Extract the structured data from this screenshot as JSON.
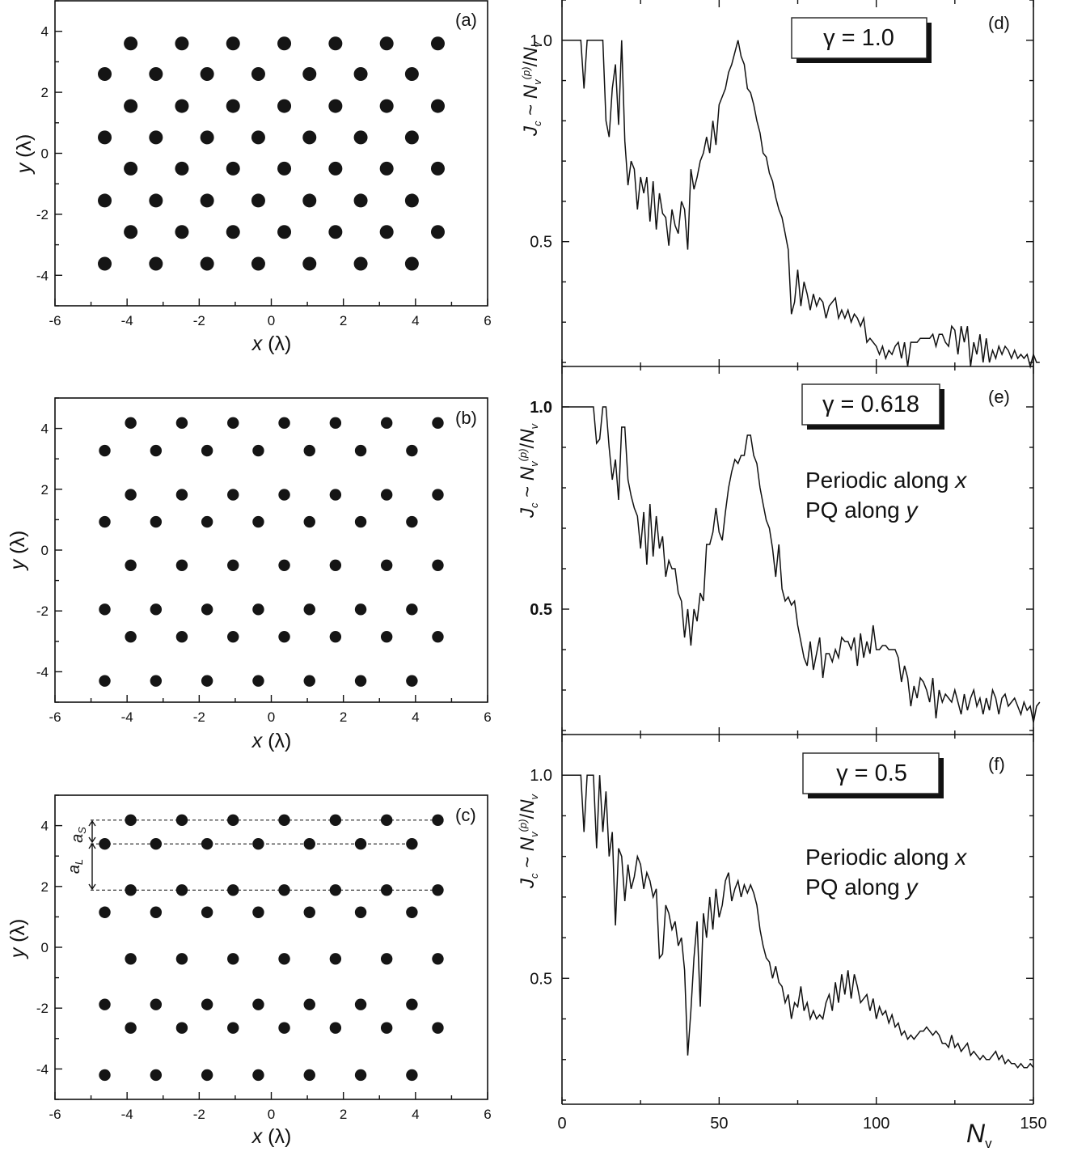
{
  "chart_data": [
    {
      "panel": "(a)",
      "type": "scatter",
      "xlabel_main": "x",
      "xlabel_unit": " (λ)",
      "ylabel_main": "y",
      "ylabel_unit": " (λ)",
      "xlim": [
        -6,
        6
      ],
      "ylim": [
        -5,
        5
      ],
      "xticks": [
        -6,
        -4,
        -2,
        0,
        2,
        4,
        6
      ],
      "yticks": [
        -4,
        -2,
        0,
        2,
        4
      ],
      "row_y": [
        3.6,
        2.6,
        1.55,
        0.52,
        -0.5,
        -1.55,
        -2.58,
        -3.62
      ],
      "row_start_x": [
        -3.9,
        -4.62,
        -3.9,
        -4.62,
        -3.9,
        -4.62,
        -3.9,
        -4.62
      ],
      "row_count": [
        7,
        7,
        7,
        7,
        7,
        7,
        7,
        7
      ],
      "dx": 1.42,
      "dot_size": "large"
    },
    {
      "panel": "(b)",
      "type": "scatter",
      "xlabel_main": "x",
      "xlabel_unit": " (λ)",
      "ylabel_main": "y",
      "ylabel_unit": " (λ)",
      "xlim": [
        -6,
        6
      ],
      "ylim": [
        -5,
        5
      ],
      "xticks": [
        -6,
        -4,
        -2,
        0,
        2,
        4,
        6
      ],
      "yticks": [
        -4,
        -2,
        0,
        2,
        4
      ],
      "row_y": [
        4.18,
        3.27,
        1.82,
        0.93,
        -0.5,
        -1.95,
        -2.85,
        -4.3
      ],
      "row_start_x": [
        -3.9,
        -4.62,
        -3.9,
        -4.62,
        -3.9,
        -4.62,
        -3.9,
        -4.62
      ],
      "row_count": [
        7,
        7,
        7,
        7,
        7,
        7,
        7,
        7
      ],
      "dx": 1.42,
      "dot_size": "medium"
    },
    {
      "panel": "(c)",
      "type": "scatter",
      "xlabel_main": "x",
      "xlabel_unit": " (λ)",
      "ylabel_main": "y",
      "ylabel_unit": " (λ)",
      "xlim": [
        -6,
        6
      ],
      "ylim": [
        -5,
        5
      ],
      "xticks": [
        -6,
        -4,
        -2,
        0,
        2,
        4,
        6
      ],
      "yticks": [
        -4,
        -2,
        0,
        2,
        4
      ],
      "row_y": [
        4.18,
        3.4,
        1.88,
        1.15,
        -0.38,
        -1.88,
        -2.65,
        -4.2
      ],
      "row_start_x": [
        -3.9,
        -4.62,
        -3.9,
        -4.62,
        -3.9,
        -4.62,
        -3.9,
        -4.62
      ],
      "row_count": [
        7,
        7,
        7,
        7,
        7,
        7,
        7,
        7
      ],
      "dx": 1.42,
      "dot_size": "medium",
      "dashed_rows_y": [
        4.18,
        3.4,
        1.88
      ],
      "annotations": {
        "a_s_main": "a",
        "a_s_sub": "S",
        "a_l_main": "a",
        "a_l_sub": "L"
      }
    },
    {
      "panel": "(d)",
      "type": "line",
      "gamma_label": "γ = 1.0",
      "ylabel_J": "J",
      "ylabel_Jsub": "c",
      "ylabel_approx": " ~ ",
      "ylabel_N": "N",
      "ylabel_Nsub": "v",
      "ylabel_Nsup": "(p)",
      "ylabel_slash": "/",
      "xlim": [
        0,
        150
      ],
      "ylim": [
        0.19,
        1.1
      ],
      "yticks": [
        0.5,
        1.0
      ],
      "ytick_labels": [
        "0.5",
        "1.0"
      ],
      "x_start": 1,
      "x_step": 1,
      "y": [
        1.0,
        1.0,
        1.0,
        1.0,
        1.0,
        1.0,
        0.88,
        1.0,
        1.0,
        1.0,
        1.0,
        1.0,
        1.0,
        0.8,
        0.76,
        0.88,
        0.94,
        0.79,
        1.0,
        0.75,
        0.64,
        0.7,
        0.68,
        0.58,
        0.66,
        0.62,
        0.66,
        0.55,
        0.65,
        0.53,
        0.62,
        0.57,
        0.56,
        0.49,
        0.58,
        0.54,
        0.52,
        0.6,
        0.58,
        0.48,
        0.68,
        0.63,
        0.66,
        0.7,
        0.72,
        0.76,
        0.72,
        0.8,
        0.74,
        0.84,
        0.86,
        0.88,
        0.92,
        0.94,
        0.97,
        1.0,
        0.96,
        0.94,
        0.88,
        0.87,
        0.84,
        0.8,
        0.77,
        0.72,
        0.71,
        0.67,
        0.65,
        0.61,
        0.58,
        0.56,
        0.52,
        0.48,
        0.32,
        0.35,
        0.43,
        0.34,
        0.4,
        0.37,
        0.33,
        0.37,
        0.34,
        0.36,
        0.35,
        0.31,
        0.34,
        0.35,
        0.36,
        0.31,
        0.33,
        0.31,
        0.33,
        0.3,
        0.32,
        0.31,
        0.29,
        0.31,
        0.25,
        0.26,
        0.25,
        0.24,
        0.22,
        0.24,
        0.21,
        0.23,
        0.22,
        0.24,
        0.25,
        0.21,
        0.25,
        0.19,
        0.25,
        0.25,
        0.25,
        0.26,
        0.26,
        0.26,
        0.26,
        0.27,
        0.24,
        0.27,
        0.27,
        0.25,
        0.24,
        0.29,
        0.28,
        0.22,
        0.29,
        0.25,
        0.29,
        0.19,
        0.25,
        0.22,
        0.27,
        0.2,
        0.26,
        0.2,
        0.23,
        0.21,
        0.24,
        0.22,
        0.24,
        0.23,
        0.21,
        0.23,
        0.21,
        0.22,
        0.21,
        0.22,
        0.19,
        0.22,
        0.2,
        0.2
      ]
    },
    {
      "panel": "(e)",
      "type": "line",
      "gamma_label": "γ = 0.618",
      "note_line1_prefix": "Periodic along ",
      "note_line1_var": "x",
      "note_line2_prefix": "PQ along ",
      "note_line2_var": "y",
      "ylabel_J": "J",
      "ylabel_Jsub": "c",
      "ylabel_approx": " ~ ",
      "ylabel_N": "N",
      "ylabel_Nsub": "v",
      "ylabel_Nsup": "(p)",
      "ylabel_slash": "/",
      "xlim": [
        0,
        150
      ],
      "ylim": [
        0.19,
        1.1
      ],
      "yticks": [
        0.5,
        1.0
      ],
      "ytick_labels": [
        "0.5",
        "1.0"
      ],
      "x_start": 1,
      "x_step": 1,
      "y": [
        1.0,
        1.0,
        1.0,
        1.0,
        1.0,
        1.0,
        1.0,
        1.0,
        1.0,
        1.0,
        0.91,
        0.92,
        1.0,
        1.0,
        0.9,
        0.82,
        0.87,
        0.77,
        0.95,
        0.95,
        0.82,
        0.78,
        0.75,
        0.73,
        0.65,
        0.74,
        0.61,
        0.76,
        0.63,
        0.73,
        0.65,
        0.68,
        0.58,
        0.62,
        0.6,
        0.6,
        0.54,
        0.52,
        0.43,
        0.5,
        0.41,
        0.5,
        0.47,
        0.54,
        0.52,
        0.66,
        0.66,
        0.69,
        0.75,
        0.69,
        0.67,
        0.74,
        0.8,
        0.84,
        0.87,
        0.86,
        0.88,
        0.88,
        0.93,
        0.93,
        0.88,
        0.86,
        0.8,
        0.76,
        0.72,
        0.7,
        0.65,
        0.58,
        0.66,
        0.55,
        0.52,
        0.53,
        0.51,
        0.52,
        0.46,
        0.42,
        0.38,
        0.36,
        0.42,
        0.35,
        0.39,
        0.43,
        0.33,
        0.39,
        0.39,
        0.37,
        0.4,
        0.38,
        0.43,
        0.42,
        0.42,
        0.4,
        0.43,
        0.36,
        0.44,
        0.38,
        0.42,
        0.39,
        0.46,
        0.4,
        0.4,
        0.41,
        0.41,
        0.4,
        0.4,
        0.4,
        0.38,
        0.32,
        0.36,
        0.33,
        0.26,
        0.31,
        0.28,
        0.33,
        0.32,
        0.3,
        0.27,
        0.33,
        0.23,
        0.3,
        0.27,
        0.29,
        0.28,
        0.27,
        0.3,
        0.27,
        0.24,
        0.29,
        0.25,
        0.28,
        0.3,
        0.26,
        0.28,
        0.24,
        0.28,
        0.25,
        0.3,
        0.28,
        0.24,
        0.28,
        0.29,
        0.26,
        0.27,
        0.28,
        0.26,
        0.24,
        0.27,
        0.25,
        0.26,
        0.22,
        0.26,
        0.27
      ]
    },
    {
      "panel": "(f)",
      "type": "line",
      "gamma_label": "γ = 0.5",
      "note_line1_prefix": "Periodic along ",
      "note_line1_var": "x",
      "note_line2_prefix": "PQ along ",
      "note_line2_var": "y",
      "ylabel_J": "J",
      "ylabel_Jsub": "c",
      "ylabel_approx": " ~ ",
      "ylabel_N": "N",
      "ylabel_Nsub": "v",
      "ylabel_Nsup": "(p)",
      "ylabel_slash": "/",
      "xlabel_main": "N",
      "xlabel_sub": "v",
      "xlim": [
        0,
        150
      ],
      "ylim": [
        0.19,
        1.1
      ],
      "xticks": [
        0,
        50,
        100,
        150
      ],
      "xtick_labels": [
        "0",
        "50",
        "100",
        "150"
      ],
      "yticks": [
        0.5,
        1.0
      ],
      "ytick_labels": [
        "0.5",
        "1.0"
      ],
      "x_start": 1,
      "x_step": 1,
      "y": [
        1.0,
        1.0,
        1.0,
        1.0,
        1.0,
        1.0,
        0.86,
        1.0,
        1.0,
        1.0,
        0.82,
        1.0,
        0.86,
        0.96,
        0.8,
        0.86,
        0.63,
        0.82,
        0.8,
        0.69,
        0.78,
        0.72,
        0.75,
        0.8,
        0.78,
        0.72,
        0.76,
        0.74,
        0.7,
        0.72,
        0.55,
        0.56,
        0.68,
        0.66,
        0.62,
        0.64,
        0.58,
        0.6,
        0.52,
        0.31,
        0.42,
        0.55,
        0.64,
        0.43,
        0.66,
        0.6,
        0.7,
        0.62,
        0.72,
        0.65,
        0.68,
        0.74,
        0.76,
        0.69,
        0.72,
        0.74,
        0.7,
        0.73,
        0.71,
        0.73,
        0.71,
        0.68,
        0.62,
        0.58,
        0.55,
        0.54,
        0.5,
        0.53,
        0.49,
        0.48,
        0.44,
        0.46,
        0.4,
        0.44,
        0.43,
        0.48,
        0.42,
        0.44,
        0.4,
        0.42,
        0.4,
        0.41,
        0.4,
        0.44,
        0.46,
        0.42,
        0.49,
        0.44,
        0.51,
        0.46,
        0.52,
        0.45,
        0.51,
        0.48,
        0.44,
        0.45,
        0.46,
        0.42,
        0.45,
        0.4,
        0.43,
        0.41,
        0.42,
        0.39,
        0.41,
        0.38,
        0.39,
        0.36,
        0.37,
        0.35,
        0.36,
        0.35,
        0.36,
        0.37,
        0.37,
        0.38,
        0.37,
        0.36,
        0.37,
        0.36,
        0.34,
        0.34,
        0.33,
        0.36,
        0.33,
        0.34,
        0.32,
        0.33,
        0.34,
        0.31,
        0.32,
        0.31,
        0.3,
        0.31,
        0.3,
        0.3,
        0.31,
        0.32,
        0.3,
        0.31,
        0.29,
        0.3,
        0.29,
        0.29,
        0.28,
        0.29,
        0.28,
        0.28,
        0.29,
        0.28
      ]
    }
  ]
}
